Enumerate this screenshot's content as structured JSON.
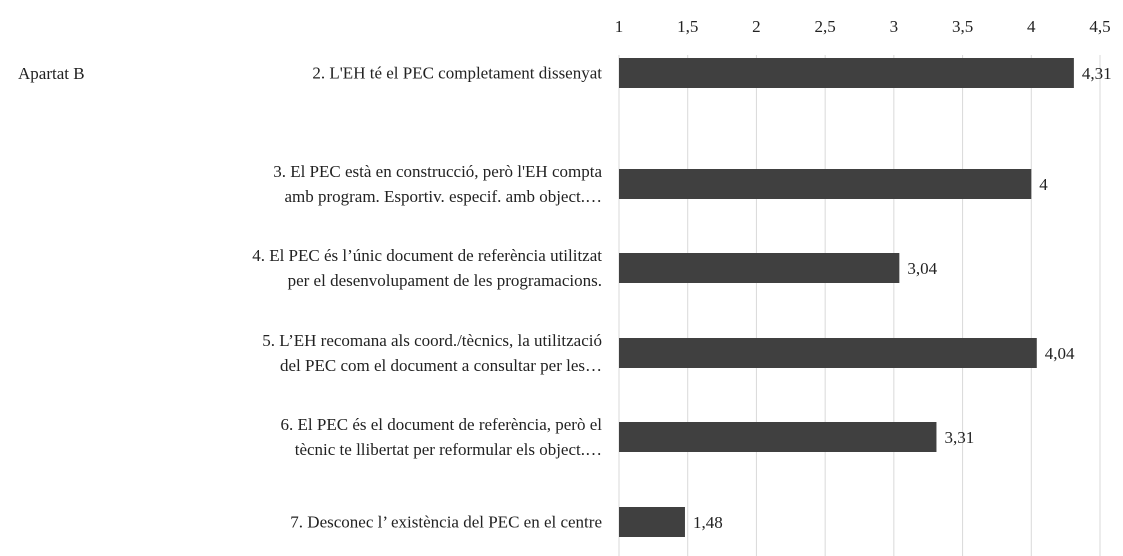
{
  "chart_data": {
    "type": "bar",
    "orientation": "horizontal",
    "subtitle": "Apartat B",
    "categories": [
      "2. L'EH té el PEC completament dissenyat",
      "3. El PEC està en construcció, però l'EH compta\namb program. Esportiv. especif. amb object.…",
      "4. El PEC és l’únic document de referència utilitzat\nper el desenvolupament de les programacions.",
      "5. L’EH recomana als coord./tècnics, la utilització\ndel PEC com el document a consultar per les…",
      "6. El PEC és el document de referència, però el\ntècnic te llibertat per reformular els object.…",
      "7. Desconec l’ existència del PEC en el centre"
    ],
    "values": [
      4.31,
      4,
      3.04,
      4.04,
      3.31,
      1.48
    ],
    "value_labels": [
      "4,31",
      "4",
      "3,04",
      "4,04",
      "3,31",
      "1,48"
    ],
    "color": "#404040",
    "xlim": [
      1,
      4.5
    ],
    "xticks": [
      1,
      {
        "value": 1.5,
        "label": "1,5"
      },
      2,
      {
        "value": 2.5,
        "label": "2,5"
      },
      3,
      {
        "value": 3.5,
        "label": "3,5"
      },
      4,
      {
        "value": 4.5,
        "label": "4,5"
      }
    ],
    "grid": true
  }
}
